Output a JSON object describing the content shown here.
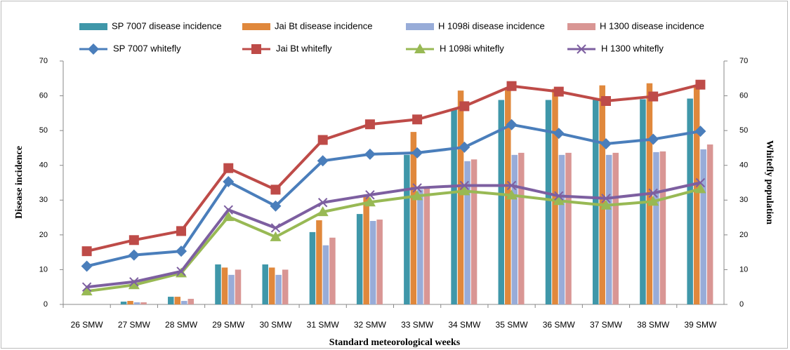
{
  "chart_data": {
    "type": "combo",
    "x_label": "Standard meteorological weeks",
    "y_label": "Disease incidence",
    "y2_label": "Whitefly population",
    "categories": [
      "26 SMW",
      "27 SMW",
      "28 SMW",
      "29 SMW",
      "30 SMW",
      "31 SMW",
      "32 SMW",
      "33 SMW",
      "34 SMW",
      "35 SMW",
      "36 SMW",
      "37 SMW",
      "38 SMW",
      "39 SMW"
    ],
    "ylim": [
      0,
      70
    ],
    "yticks": [
      0,
      10,
      20,
      30,
      40,
      50,
      60,
      70
    ],
    "y2lim": [
      0,
      70
    ],
    "y2ticks": [
      0,
      10,
      20,
      30,
      40,
      50,
      60,
      70
    ],
    "series": [
      {
        "name": "SP 7007 disease incidence",
        "type": "bar",
        "color": "#3f97a9",
        "values": [
          0,
          0.8,
          2.2,
          11.5,
          11.5,
          20.8,
          26,
          43,
          56,
          58.8,
          58.8,
          59,
          59,
          59.2
        ]
      },
      {
        "name": "Jai Bt disease incidence",
        "type": "bar",
        "color": "#e0883c",
        "values": [
          0,
          1,
          2.2,
          10.6,
          10.6,
          24.2,
          31,
          49.6,
          61.5,
          62,
          62,
          63,
          63.6,
          63
        ]
      },
      {
        "name": "H 1098i disease incidence",
        "type": "bar",
        "color": "#98acd8",
        "values": [
          0,
          0.6,
          1,
          8.5,
          8.5,
          17,
          24,
          33,
          41.2,
          43,
          43,
          43,
          43.8,
          44.6
        ]
      },
      {
        "name": "H 1300 disease incidence",
        "type": "bar",
        "color": "#d99694",
        "values": [
          0,
          0.6,
          1.6,
          10,
          10,
          19.2,
          24.4,
          33.4,
          41.7,
          43.6,
          43.6,
          43.6,
          44,
          46
        ]
      },
      {
        "name": "SP 7007 whitefly",
        "type": "line",
        "axis": "y2",
        "marker": "diamond",
        "color": "#4a7ebb",
        "values": [
          11,
          14.2,
          15.3,
          35.3,
          28.3,
          41.3,
          43.2,
          43.6,
          45.2,
          51.7,
          49.2,
          46.2,
          47.5,
          49.8
        ]
      },
      {
        "name": "Jai Bt whitefly",
        "type": "line",
        "axis": "y2",
        "marker": "square",
        "color": "#be4b48",
        "values": [
          15.3,
          18.5,
          21.1,
          39.2,
          33,
          47.3,
          51.8,
          53.2,
          57,
          62.8,
          61.2,
          58.5,
          59.8,
          63.2
        ]
      },
      {
        "name": "H 1098i whitefly",
        "type": "line",
        "axis": "y2",
        "marker": "triangle",
        "color": "#98b954",
        "values": [
          3.8,
          5.6,
          9,
          25.2,
          19.4,
          26.6,
          29.4,
          31.2,
          32.6,
          31.4,
          29.8,
          28.5,
          29.6,
          33.2
        ]
      },
      {
        "name": "H 1300 whitefly",
        "type": "line",
        "axis": "y2",
        "marker": "x",
        "color": "#7d5fa0",
        "values": [
          5,
          6.5,
          9.5,
          27.2,
          22,
          29.3,
          31.5,
          33.5,
          34.2,
          34.2,
          31.2,
          30.5,
          32,
          35
        ]
      }
    ]
  }
}
